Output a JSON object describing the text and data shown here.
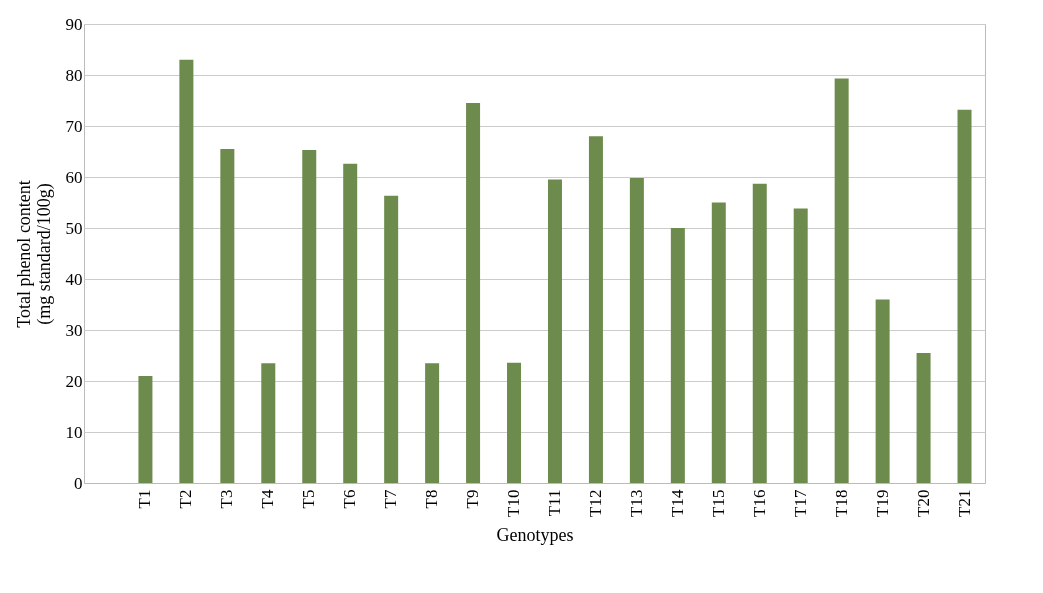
{
  "chart_data": {
    "type": "bar",
    "xlabel": "Genotypes",
    "ylabel": "Total phenol content\n(mg standard/100g)",
    "categories": [
      null,
      "T1",
      "T2",
      "T3",
      "T4",
      "T5",
      "T6",
      "T7",
      "T8",
      "T9",
      "T10",
      "T11",
      "T12",
      "T13",
      "T14",
      "T15",
      "T16",
      "T17",
      "T18",
      "T19",
      "T20",
      "T21"
    ],
    "values": [
      null,
      21,
      83,
      65.5,
      23.5,
      65.3,
      62.6,
      56.3,
      23.5,
      74.5,
      23.6,
      59.5,
      68,
      59.8,
      50,
      55,
      58.7,
      53.8,
      79.3,
      36,
      25.5,
      73.2
    ],
    "color": "#6e8b4e",
    "ylim": [
      0,
      90
    ],
    "yticks": [
      0,
      10,
      20,
      30,
      40,
      50,
      60,
      70,
      80,
      90
    ],
    "grid": "y"
  }
}
